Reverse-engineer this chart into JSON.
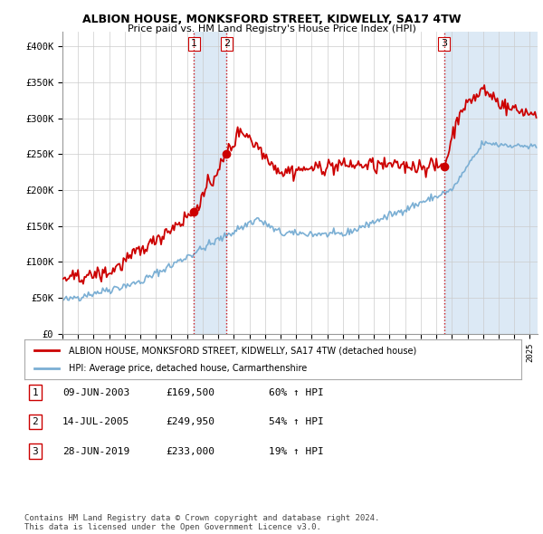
{
  "title": "ALBION HOUSE, MONKSFORD STREET, KIDWELLY, SA17 4TW",
  "subtitle": "Price paid vs. HM Land Registry's House Price Index (HPI)",
  "ylabel_ticks": [
    "£0",
    "£50K",
    "£100K",
    "£150K",
    "£200K",
    "£250K",
    "£300K",
    "£350K",
    "£400K"
  ],
  "ytick_values": [
    0,
    50000,
    100000,
    150000,
    200000,
    250000,
    300000,
    350000,
    400000
  ],
  "ylim": [
    0,
    420000
  ],
  "xlim_start": 1995.0,
  "xlim_end": 2025.5,
  "sale_color": "#cc0000",
  "hpi_color": "#7bafd4",
  "vline_color": "#cc0000",
  "shade_color": "#dce9f5",
  "sales": [
    {
      "date": 2003.44,
      "price": 169500,
      "label": "1"
    },
    {
      "date": 2005.54,
      "price": 249950,
      "label": "2"
    },
    {
      "date": 2019.49,
      "price": 233000,
      "label": "3"
    }
  ],
  "legend_sale_label": "ALBION HOUSE, MONKSFORD STREET, KIDWELLY, SA17 4TW (detached house)",
  "legend_hpi_label": "HPI: Average price, detached house, Carmarthenshire",
  "table_rows": [
    {
      "num": "1",
      "date": "09-JUN-2003",
      "price": "£169,500",
      "change": "60% ↑ HPI"
    },
    {
      "num": "2",
      "date": "14-JUL-2005",
      "price": "£249,950",
      "change": "54% ↑ HPI"
    },
    {
      "num": "3",
      "date": "28-JUN-2019",
      "price": "£233,000",
      "change": "19% ↑ HPI"
    }
  ],
  "footer": "Contains HM Land Registry data © Crown copyright and database right 2024.\nThis data is licensed under the Open Government Licence v3.0.",
  "background_color": "#ffffff",
  "grid_color": "#cccccc"
}
